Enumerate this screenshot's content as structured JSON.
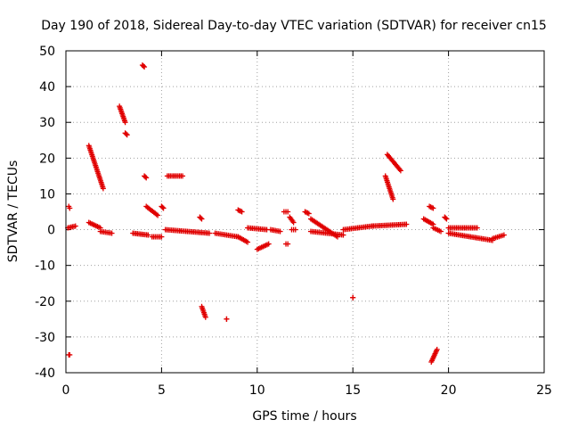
{
  "chart_data": {
    "type": "scatter",
    "title": "Day 190 of 2018, Sidereal Day-to-day VTEC variation (SDTVAR) for receiver cn15",
    "xlabel": "GPS time / hours",
    "ylabel": "SDTVAR / TECUs",
    "xlim": [
      0,
      25
    ],
    "ylim": [
      -40,
      50
    ],
    "xticks": [
      0,
      5,
      10,
      15,
      20,
      25
    ],
    "yticks": [
      -40,
      -30,
      -20,
      -10,
      0,
      10,
      20,
      30,
      40,
      50
    ],
    "grid": true,
    "marker": "+",
    "color": "#e00000",
    "series": [
      {
        "name": "SDTVAR",
        "segments": [
          {
            "x": [
              0.1,
              0.5
            ],
            "y": [
              0.5,
              1.0
            ]
          },
          {
            "x": [
              0.15,
              0.2
            ],
            "y": [
              6.5,
              6.0
            ]
          },
          {
            "x": [
              0.15,
              0.2
            ],
            "y": [
              -35,
              -35
            ]
          },
          {
            "x": [
              1.2,
              1.95
            ],
            "y": [
              23.5,
              11.5
            ]
          },
          {
            "x": [
              1.2,
              1.8
            ],
            "y": [
              2.0,
              0.5
            ]
          },
          {
            "x": [
              1.8,
              2.4
            ],
            "y": [
              -0.5,
              -1.0
            ]
          },
          {
            "x": [
              2.8,
              3.1
            ],
            "y": [
              34.5,
              30.0
            ]
          },
          {
            "x": [
              3.1,
              3.2
            ],
            "y": [
              27.0,
              26.5
            ]
          },
          {
            "x": [
              4.0,
              4.1
            ],
            "y": [
              46.0,
              45.5
            ]
          },
          {
            "x": [
              4.1,
              4.2
            ],
            "y": [
              15.0,
              14.5
            ]
          },
          {
            "x": [
              4.2,
              4.8
            ],
            "y": [
              6.5,
              4.0
            ]
          },
          {
            "x": [
              5.0,
              5.1
            ],
            "y": [
              6.5,
              6.0
            ]
          },
          {
            "x": [
              3.5,
              4.3
            ],
            "y": [
              -1.0,
              -1.5
            ]
          },
          {
            "x": [
              4.5,
              5.0
            ],
            "y": [
              -2.0,
              -2.0
            ]
          },
          {
            "x": [
              5.2,
              7.5
            ],
            "y": [
              0.0,
              -1.0
            ]
          },
          {
            "x": [
              5.3,
              6.1
            ],
            "y": [
              15.0,
              15.0
            ]
          },
          {
            "x": [
              7.0,
              7.1
            ],
            "y": [
              3.5,
              3.0
            ]
          },
          {
            "x": [
              7.1,
              7.3
            ],
            "y": [
              -21.5,
              -24.5
            ]
          },
          {
            "x": [
              8.4,
              8.4
            ],
            "y": [
              -25.0,
              -25.0
            ]
          },
          {
            "x": [
              7.8,
              9.0
            ],
            "y": [
              -1.0,
              -2.0
            ]
          },
          {
            "x": [
              9.0,
              9.2
            ],
            "y": [
              5.5,
              5.0
            ]
          },
          {
            "x": [
              9.0,
              9.5
            ],
            "y": [
              -2.0,
              -3.5
            ]
          },
          {
            "x": [
              9.5,
              10.5
            ],
            "y": [
              0.5,
              0.0
            ]
          },
          {
            "x": [
              10.0,
              10.6
            ],
            "y": [
              -5.5,
              -4.0
            ]
          },
          {
            "x": [
              10.7,
              11.2
            ],
            "y": [
              0.0,
              -0.5
            ]
          },
          {
            "x": [
              11.4,
              11.6
            ],
            "y": [
              5.0,
              5.0
            ]
          },
          {
            "x": [
              11.5,
              11.6
            ],
            "y": [
              -4.0,
              -4.0
            ]
          },
          {
            "x": [
              11.7,
              11.9
            ],
            "y": [
              3.5,
              2.0
            ]
          },
          {
            "x": [
              11.8,
              12.0
            ],
            "y": [
              0.0,
              0.0
            ]
          },
          {
            "x": [
              12.5,
              12.7
            ],
            "y": [
              5.0,
              4.5
            ]
          },
          {
            "x": [
              12.8,
              14.2
            ],
            "y": [
              3.0,
              -2.0
            ]
          },
          {
            "x": [
              12.8,
              14.5
            ],
            "y": [
              -0.5,
              -1.5
            ]
          },
          {
            "x": [
              14.5,
              16.0
            ],
            "y": [
              0.0,
              1.0
            ]
          },
          {
            "x": [
              15.0,
              15.0
            ],
            "y": [
              -19.0,
              -19.0
            ]
          },
          {
            "x": [
              16.0,
              17.8
            ],
            "y": [
              1.0,
              1.5
            ]
          },
          {
            "x": [
              16.8,
              17.5
            ],
            "y": [
              21.0,
              16.5
            ]
          },
          {
            "x": [
              16.7,
              17.1
            ],
            "y": [
              15.0,
              8.5
            ]
          },
          {
            "x": [
              18.7,
              19.2
            ],
            "y": [
              3.0,
              1.5
            ]
          },
          {
            "x": [
              19.0,
              19.2
            ],
            "y": [
              6.5,
              6.0
            ]
          },
          {
            "x": [
              19.1,
              19.4
            ],
            "y": [
              -37.0,
              -33.5
            ]
          },
          {
            "x": [
              19.2,
              19.6
            ],
            "y": [
              0.5,
              -0.5
            ]
          },
          {
            "x": [
              19.8,
              19.9
            ],
            "y": [
              3.5,
              3.0
            ]
          },
          {
            "x": [
              20.0,
              21.5
            ],
            "y": [
              0.5,
              0.5
            ]
          },
          {
            "x": [
              20.0,
              22.3
            ],
            "y": [
              -1.0,
              -3.0
            ]
          },
          {
            "x": [
              22.3,
              22.9
            ],
            "y": [
              -2.5,
              -1.5
            ]
          }
        ]
      }
    ]
  }
}
